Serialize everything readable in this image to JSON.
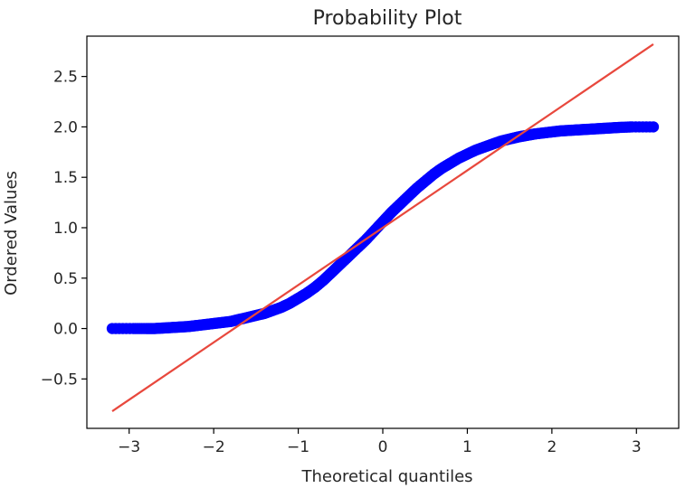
{
  "chart_data": {
    "type": "scatter",
    "title": "Probability Plot",
    "xlabel": "Theoretical quantiles",
    "ylabel": "Ordered Values",
    "xlim": [
      -3.5,
      3.5
    ],
    "ylim": [
      -0.99,
      2.9
    ],
    "xticks": [
      -3,
      -2,
      -1,
      0,
      1,
      2,
      3
    ],
    "xtick_labels": [
      "−3",
      "−2",
      "−1",
      "0",
      "1",
      "2",
      "3"
    ],
    "yticks": [
      -0.5,
      0.0,
      0.5,
      1.0,
      1.5,
      2.0,
      2.5
    ],
    "ytick_labels": [
      "−0.5",
      "0.0",
      "0.5",
      "1.0",
      "1.5",
      "2.0",
      "2.5"
    ],
    "grid": false,
    "series": [
      {
        "kind": "scatter",
        "color": "#0000ff",
        "x": [
          -3.2,
          -2.95,
          -2.8,
          -2.7,
          -2.6,
          -2.5,
          -2.4,
          -2.3,
          -2.2,
          -2.1,
          -2.0,
          -1.9,
          -1.8,
          -1.7,
          -1.6,
          -1.5,
          -1.4,
          -1.3,
          -1.2,
          -1.1,
          -1.0,
          -0.9,
          -0.8,
          -0.7,
          -0.6,
          -0.5,
          -0.4,
          -0.3,
          -0.2,
          -0.1,
          0.0,
          0.1,
          0.2,
          0.3,
          0.4,
          0.5,
          0.6,
          0.7,
          0.8,
          0.9,
          1.0,
          1.1,
          1.2,
          1.3,
          1.4,
          1.5,
          1.6,
          1.7,
          1.8,
          1.9,
          2.0,
          2.1,
          2.2,
          2.3,
          2.4,
          2.5,
          2.6,
          2.7,
          2.8,
          2.95,
          3.2
        ],
        "y": [
          0.0,
          0.0,
          0.0,
          0.0,
          0.005,
          0.01,
          0.015,
          0.02,
          0.03,
          0.04,
          0.05,
          0.06,
          0.07,
          0.09,
          0.11,
          0.13,
          0.15,
          0.18,
          0.21,
          0.25,
          0.3,
          0.35,
          0.41,
          0.48,
          0.56,
          0.64,
          0.72,
          0.8,
          0.88,
          0.97,
          1.06,
          1.15,
          1.23,
          1.31,
          1.39,
          1.46,
          1.53,
          1.59,
          1.64,
          1.69,
          1.73,
          1.77,
          1.8,
          1.83,
          1.86,
          1.88,
          1.9,
          1.915,
          1.93,
          1.94,
          1.95,
          1.96,
          1.965,
          1.97,
          1.975,
          1.98,
          1.985,
          1.99,
          1.995,
          2.0,
          2.0
        ]
      },
      {
        "kind": "line",
        "color": "#e8483d",
        "x": [
          -3.2,
          3.2
        ],
        "y": [
          -0.82,
          2.82
        ]
      }
    ]
  }
}
